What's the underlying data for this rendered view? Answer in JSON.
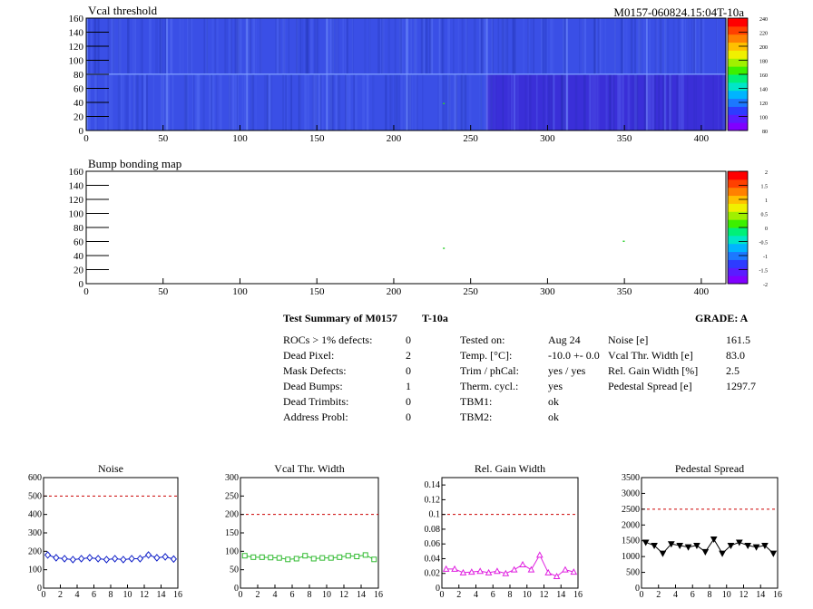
{
  "module_id": "M0157-060824.15:04T-10a",
  "colors": {
    "map_base": "#3a4fe6",
    "map_right_block": "#3a2fd8",
    "noise": "#1020c8",
    "vcal": "#33bb33",
    "gain": "#e020e0",
    "pedestal": "#000000",
    "limit": "#cc0000"
  },
  "chart_data": [
    {
      "type": "heatmap",
      "title": "Vcal threshold",
      "x_ticks": [
        0,
        50,
        100,
        150,
        200,
        250,
        300,
        350,
        400
      ],
      "y_ticks": [
        0,
        20,
        40,
        60,
        80,
        100,
        120,
        140,
        160
      ],
      "xlim": [
        0,
        416
      ],
      "ylim": [
        0,
        160
      ],
      "colorbar": {
        "min": 80,
        "max": 240,
        "ticks": [
          80,
          100,
          120,
          140,
          160,
          180,
          200,
          220,
          240
        ]
      },
      "highlight_points": [
        {
          "x": 232,
          "y": 38
        }
      ]
    },
    {
      "type": "heatmap",
      "title": "Bump bonding map",
      "x_ticks": [
        0,
        50,
        100,
        150,
        200,
        250,
        300,
        350,
        400
      ],
      "y_ticks": [
        0,
        20,
        40,
        60,
        80,
        100,
        120,
        140,
        160
      ],
      "xlim": [
        0,
        416
      ],
      "ylim": [
        0,
        160
      ],
      "colorbar": {
        "min": -2,
        "max": 2,
        "ticks": [
          2,
          1.5,
          1,
          0.5,
          0,
          -0.5,
          -1,
          -1.5,
          -2
        ]
      },
      "highlight_points": [
        {
          "x": 232,
          "y": 50
        },
        {
          "x": 349,
          "y": 60
        }
      ]
    },
    {
      "type": "line",
      "title": "Noise",
      "x": [
        0,
        1,
        2,
        3,
        4,
        5,
        6,
        7,
        8,
        9,
        10,
        11,
        12,
        13,
        14,
        15
      ],
      "values": [
        180,
        165,
        160,
        155,
        160,
        165,
        160,
        155,
        160,
        155,
        160,
        160,
        180,
        165,
        170,
        158
      ],
      "x_ticks": [
        0,
        2,
        4,
        6,
        8,
        10,
        12,
        14,
        16
      ],
      "y_ticks": [
        0,
        100,
        200,
        300,
        400,
        500,
        600
      ],
      "xlim": [
        0,
        16
      ],
      "ylim": [
        0,
        600
      ],
      "limit": 500,
      "marker": "diamond",
      "color_key": "noise"
    },
    {
      "type": "line",
      "title": "Vcal Thr. Width",
      "x": [
        0,
        1,
        2,
        3,
        4,
        5,
        6,
        7,
        8,
        9,
        10,
        11,
        12,
        13,
        14,
        15
      ],
      "values": [
        88,
        84,
        84,
        83,
        82,
        78,
        80,
        88,
        80,
        82,
        82,
        84,
        88,
        86,
        90,
        78
      ],
      "x_ticks": [
        0,
        2,
        4,
        6,
        8,
        10,
        12,
        14,
        16
      ],
      "y_ticks": [
        0,
        50,
        100,
        150,
        200,
        250,
        300
      ],
      "xlim": [
        0,
        16
      ],
      "ylim": [
        0,
        300
      ],
      "limit": 200,
      "marker": "square",
      "color_key": "vcal"
    },
    {
      "type": "line",
      "title": "Rel. Gain Width",
      "x": [
        0,
        1,
        2,
        3,
        4,
        5,
        6,
        7,
        8,
        9,
        10,
        11,
        12,
        13,
        14,
        15
      ],
      "values": [
        0.026,
        0.026,
        0.021,
        0.022,
        0.023,
        0.021,
        0.023,
        0.02,
        0.025,
        0.032,
        0.025,
        0.045,
        0.021,
        0.016,
        0.025,
        0.022
      ],
      "x_ticks": [
        0,
        2,
        4,
        6,
        8,
        10,
        12,
        14,
        16
      ],
      "y_ticks": [
        0,
        0.02,
        0.04,
        0.06,
        0.08,
        0.1,
        0.12,
        0.14
      ],
      "xlim": [
        0,
        16
      ],
      "ylim": [
        0,
        0.15
      ],
      "limit": 0.1,
      "marker": "triangle",
      "color_key": "gain"
    },
    {
      "type": "line",
      "title": "Pedestal Spread",
      "x": [
        0,
        1,
        2,
        3,
        4,
        5,
        6,
        7,
        8,
        9,
        10,
        11,
        12,
        13,
        14,
        15
      ],
      "values": [
        1450,
        1350,
        1100,
        1400,
        1350,
        1300,
        1350,
        1150,
        1550,
        1100,
        1350,
        1450,
        1350,
        1300,
        1350,
        1100
      ],
      "x_ticks": [
        0,
        2,
        4,
        6,
        8,
        10,
        12,
        14,
        16
      ],
      "y_ticks": [
        0,
        500,
        1000,
        1500,
        2000,
        2500,
        3000,
        3500
      ],
      "xlim": [
        0,
        16
      ],
      "ylim": [
        0,
        3500
      ],
      "limit": 2500,
      "marker": "triangle-down",
      "color_key": "pedestal"
    }
  ],
  "summary": {
    "title": "Test Summary of M0157",
    "test": "T-10a",
    "grade": "GRADE:  A",
    "defects": [
      {
        "label": "ROCs > 1% defects:",
        "value": "0"
      },
      {
        "label": "Dead Pixel:",
        "value": "2"
      },
      {
        "label": "Mask Defects:",
        "value": "0"
      },
      {
        "label": "Dead Bumps:",
        "value": "1"
      },
      {
        "label": "Dead Trimbits:",
        "value": "0"
      },
      {
        "label": "Address Probl:",
        "value": "0"
      }
    ],
    "conditions": [
      {
        "label": "Tested on:",
        "value": "Aug 24"
      },
      {
        "label": "Temp. [°C]:",
        "value": "-10.0 +- 0.0"
      },
      {
        "label": "Trim / phCal:",
        "value": "yes / yes"
      },
      {
        "label": "Therm. cycl.:",
        "value": "yes"
      },
      {
        "label": "TBM1:",
        "value": "ok"
      },
      {
        "label": "TBM2:",
        "value": "ok"
      }
    ],
    "results": [
      {
        "label": "Noise [e]",
        "value": "161.5"
      },
      {
        "label": "Vcal Thr. Width [e]",
        "value": "83.0"
      },
      {
        "label": "Rel. Gain Width [%]",
        "value": "2.5"
      },
      {
        "label": "Pedestal Spread [e]",
        "value": "1297.7"
      }
    ]
  }
}
